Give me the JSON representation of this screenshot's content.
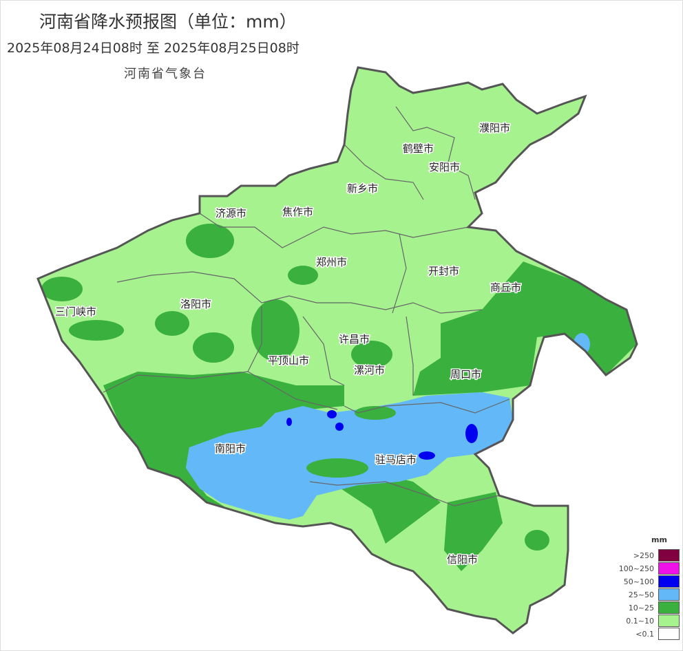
{
  "header": {
    "title": "河南省降水预报图（单位：mm）",
    "period": "2025年08月24日08时  至  2025年08月25日08时",
    "organization": "河南省气象台"
  },
  "map": {
    "region": "河南省",
    "cities": [
      "濮阳市",
      "鹤壁市",
      "安阳市",
      "新乡市",
      "焦作市",
      "济源市",
      "郑州市",
      "开封市",
      "商丘市",
      "三门峡市",
      "洛阳市",
      "许昌市",
      "平顶山市",
      "漯河市",
      "周口市",
      "南阳市",
      "驻马店市",
      "信阳市"
    ]
  },
  "legend": {
    "unit": "mm",
    "items": [
      {
        "label": ">250",
        "color": "#800040"
      },
      {
        "label": "100~250",
        "color": "#f010e8"
      },
      {
        "label": "50~100",
        "color": "#0000f0"
      },
      {
        "label": "25~50",
        "color": "#63b8f8"
      },
      {
        "label": "10~25",
        "color": "#3ab03e"
      },
      {
        "label": "0.1~10",
        "color": "#a6f28f"
      },
      {
        "label": "<0.1",
        "color": "#ffffff"
      }
    ]
  }
}
